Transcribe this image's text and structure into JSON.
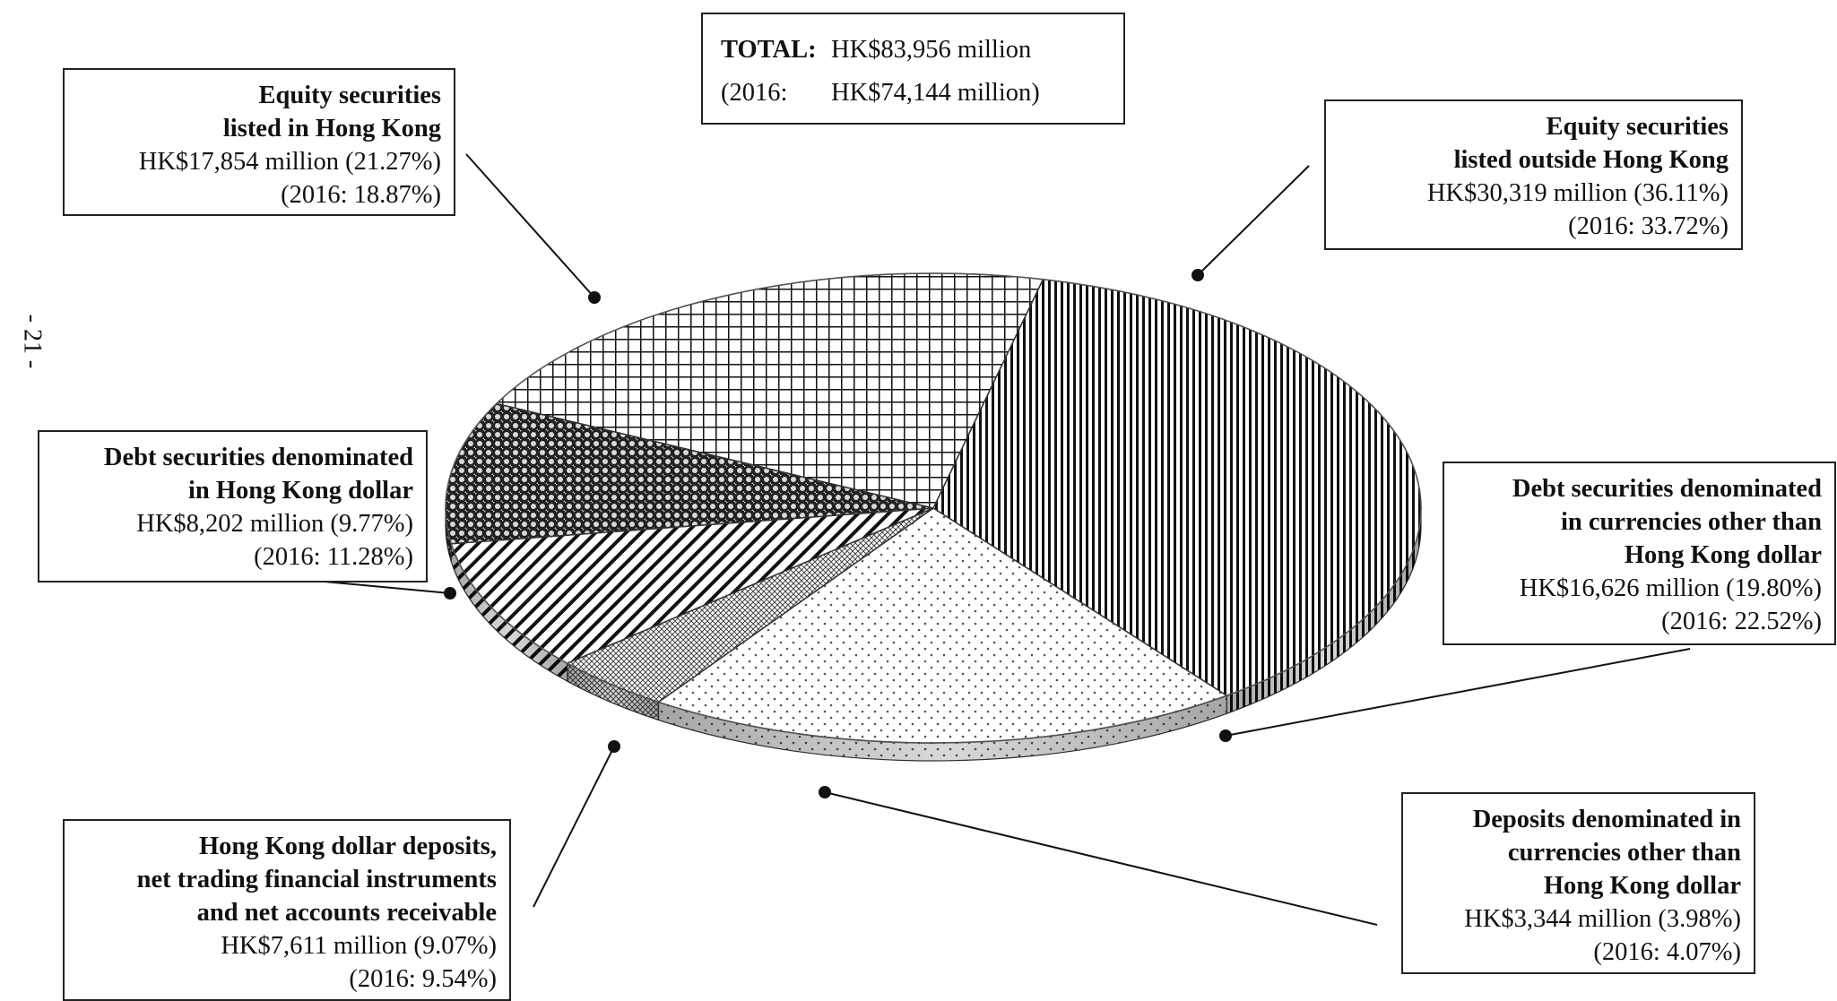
{
  "page_number": "- 21 -",
  "total": {
    "label": "TOTAL:",
    "value": "HK$83,956 million",
    "prior_label": "(2016:",
    "prior_value": "HK$74,144 million)"
  },
  "labels": {
    "eq_hk": {
      "title1": "Equity securities",
      "title2": "listed in Hong Kong",
      "amount": "HK$17,854 million (21.27%)",
      "prior": "(2016: 18.87%)"
    },
    "eq_out": {
      "title1": "Equity securities",
      "title2": "listed outside Hong Kong",
      "amount": "HK$30,319 million (36.11%)",
      "prior": "(2016: 33.72%)"
    },
    "debt_hkd": {
      "title1": "Debt securities denominated",
      "title2": "in Hong Kong dollar",
      "amount": "HK$8,202 million (9.77%)",
      "prior": "(2016: 11.28%)"
    },
    "debt_other": {
      "title1": "Debt securities denominated",
      "title2": "in currencies other than",
      "title3": "Hong Kong dollar",
      "amount": "HK$16,626 million (19.80%)",
      "prior": "(2016: 22.52%)"
    },
    "dep_hkd": {
      "title1": "Hong Kong dollar deposits,",
      "title2": "net trading financial instruments",
      "title3": "and net accounts receivable",
      "amount": "HK$7,611 million (9.07%)",
      "prior": "(2016: 9.54%)"
    },
    "dep_other": {
      "title1": "Deposits  denominated  in",
      "title2": "currencies other than",
      "title3": "Hong Kong dollar",
      "amount": "HK$3,344 million (3.98%)",
      "prior": "(2016: 4.07%)"
    }
  },
  "chart_data": {
    "type": "pie",
    "style": "3d-tilted, monochrome hatch patterns",
    "unit": "HK$ million",
    "total": 83956,
    "total_2016": 74144,
    "slices": [
      {
        "id": "eq_out",
        "name": "Equity securities listed outside Hong Kong",
        "value": 30319,
        "percent": 36.11,
        "percent_2016": 33.72,
        "pattern": "vertical-lines"
      },
      {
        "id": "debt_other",
        "name": "Debt securities denominated in currencies other than Hong Kong dollar",
        "value": 16626,
        "percent": 19.8,
        "percent_2016": 22.52,
        "pattern": "dots"
      },
      {
        "id": "dep_other",
        "name": "Deposits denominated in currencies other than Hong Kong dollar",
        "value": 3344,
        "percent": 3.98,
        "percent_2016": 4.07,
        "pattern": "crosshatch-fine"
      },
      {
        "id": "dep_hkd",
        "name": "Hong Kong dollar deposits, net trading financial instruments and net accounts receivable",
        "value": 7611,
        "percent": 9.07,
        "percent_2016": 9.54,
        "pattern": "diagonal-lines"
      },
      {
        "id": "debt_hkd",
        "name": "Debt securities denominated in Hong Kong dollar",
        "value": 8202,
        "percent": 9.77,
        "percent_2016": 11.28,
        "pattern": "dark-dots"
      },
      {
        "id": "eq_hk",
        "name": "Equity securities listed in Hong Kong",
        "value": 17854,
        "percent": 21.27,
        "percent_2016": 18.87,
        "pattern": "grid"
      }
    ]
  }
}
